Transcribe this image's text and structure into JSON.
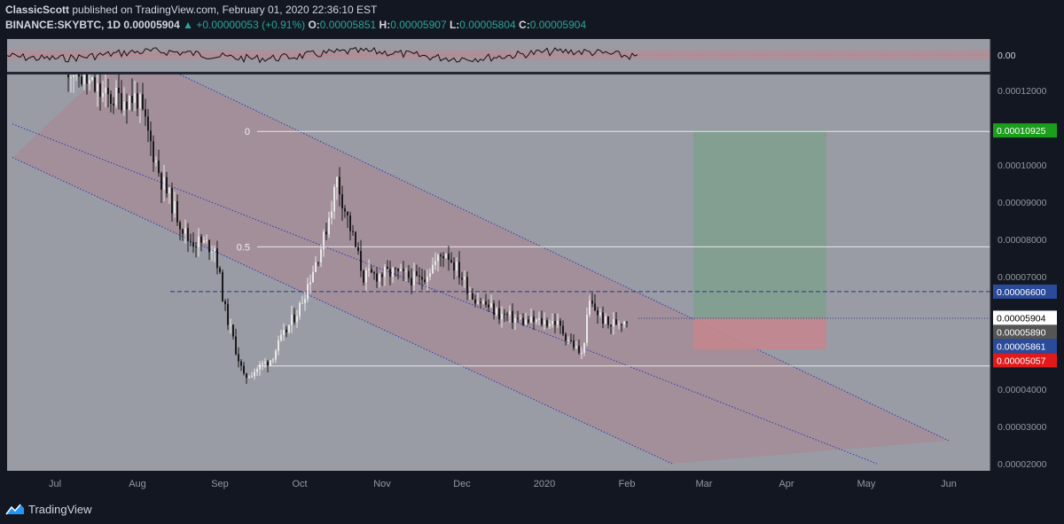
{
  "header": {
    "author": "ClassicScott",
    "published_text": "published on TradingView.com, February 01, 2020 22:36:10 EST",
    "symbol": "BINANCE:SKYBTC, 1D",
    "last_price": "0.00005904",
    "change_arrow": "▲",
    "change": "+0.00000053 (+0.91%)",
    "o_label": "O:",
    "o_value": "0.00005851",
    "h_label": "H:",
    "h_value": "0.00005907",
    "l_label": "L:",
    "l_value": "0.00005804",
    "c_label": "C:",
    "c_value": "0.00005904"
  },
  "footer": {
    "brand": "TradingView",
    "logo_icon": "tradingview-logo-icon"
  },
  "colors": {
    "background": "#131722",
    "plot_background": "#9a9ca5",
    "channel_fill": "#a58d97",
    "channel_line": "#2b3cb8",
    "target_zone": "#7fa08f",
    "stop_zone": "#c4868e",
    "candle_up": "#e8e8e8",
    "candle_down": "#1a1a1a",
    "target_badge": "#1b9e1b",
    "stop_badge": "#e01a1a",
    "level_badge": "#2a4a9a",
    "gray_badge": "#555555"
  },
  "chart_data": {
    "type": "candlestick",
    "symbol": "BINANCE:SKYBTC",
    "timeframe": "1D",
    "x_ticks": [
      "Jul",
      "Aug",
      "Sep",
      "Oct",
      "Nov",
      "Dec",
      "2020",
      "Feb",
      "Mar",
      "Apr",
      "May",
      "Jun"
    ],
    "y_ticks": [
      "0.00012000",
      "0.00010000",
      "0.00009000",
      "0.00008000",
      "0.00007000",
      "0.00004000",
      "0.00003000",
      "0.00002000"
    ],
    "ylim": [
      1.9e-05,
      0.000123
    ],
    "oscillator": {
      "zero_label": "0.00"
    },
    "series": [
      {
        "name": "SKYBTC",
        "approx_path": [
          {
            "date": "2019-07-05",
            "close": 0.000127
          },
          {
            "date": "2019-07-20",
            "close": 0.000118
          },
          {
            "date": "2019-08-01",
            "close": 0.000118
          },
          {
            "date": "2019-08-10",
            "close": 9.6e-05
          },
          {
            "date": "2019-08-20",
            "close": 8e-05
          },
          {
            "date": "2019-08-30",
            "close": 7.8e-05
          },
          {
            "date": "2019-09-03",
            "close": 6.1e-05
          },
          {
            "date": "2019-09-10",
            "close": 4.3e-05
          },
          {
            "date": "2019-09-20",
            "close": 4.8e-05
          },
          {
            "date": "2019-10-01",
            "close": 6.2e-05
          },
          {
            "date": "2019-10-10",
            "close": 8e-05
          },
          {
            "date": "2019-10-15",
            "close": 9.6e-05
          },
          {
            "date": "2019-10-25",
            "close": 7e-05
          },
          {
            "date": "2019-11-05",
            "close": 7.1e-05
          },
          {
            "date": "2019-11-15",
            "close": 6.9e-05
          },
          {
            "date": "2019-11-25",
            "close": 7.7e-05
          },
          {
            "date": "2019-12-05",
            "close": 6.5e-05
          },
          {
            "date": "2019-12-15",
            "close": 6e-05
          },
          {
            "date": "2019-12-25",
            "close": 5.8e-05
          },
          {
            "date": "2020-01-05",
            "close": 5.8e-05
          },
          {
            "date": "2020-01-15",
            "close": 4.9e-05
          },
          {
            "date": "2020-01-18",
            "close": 6.3e-05
          },
          {
            "date": "2020-01-25",
            "close": 5.7e-05
          },
          {
            "date": "2020-02-01",
            "close": 5.9e-05
          }
        ]
      }
    ],
    "fibonacci": [
      {
        "label": "0",
        "price": 0.000109
      },
      {
        "label": "0.5",
        "price": 7.8e-05
      }
    ],
    "fib_low_price": 4.62e-05,
    "resistance_price": 6.6e-05,
    "price_labels": [
      {
        "text": "0.00010925",
        "price": 0.00010925,
        "role": "target"
      },
      {
        "text": "0.00006600",
        "price": 6.6e-05,
        "role": "level"
      },
      {
        "text": "0.00005904",
        "price": 5.904e-05,
        "role": "last"
      },
      {
        "text": "0.00005890",
        "price": 5.89e-05,
        "role": "gray"
      },
      {
        "text": "0.00005861",
        "price": 5.861e-05,
        "role": "level"
      },
      {
        "text": "0.00005057",
        "price": 5.057e-05,
        "role": "stop"
      }
    ],
    "position": {
      "start": "2020-02-26",
      "end": "2020-04-16",
      "entry": 5.89e-05,
      "target": 0.00010925,
      "stop": 5.057e-05
    },
    "channel": [
      {
        "from": [
          "2019-07-28",
          0.000131
        ],
        "to": [
          "2020-06-01",
          2.62e-05
        ]
      },
      {
        "from": [
          "2019-06-15",
          0.000111
        ],
        "to": [
          "2020-05-05",
          2e-05
        ]
      },
      {
        "from": [
          "2019-06-15",
          0.000102
        ],
        "to": [
          "2020-02-18",
          2e-05
        ]
      }
    ]
  }
}
